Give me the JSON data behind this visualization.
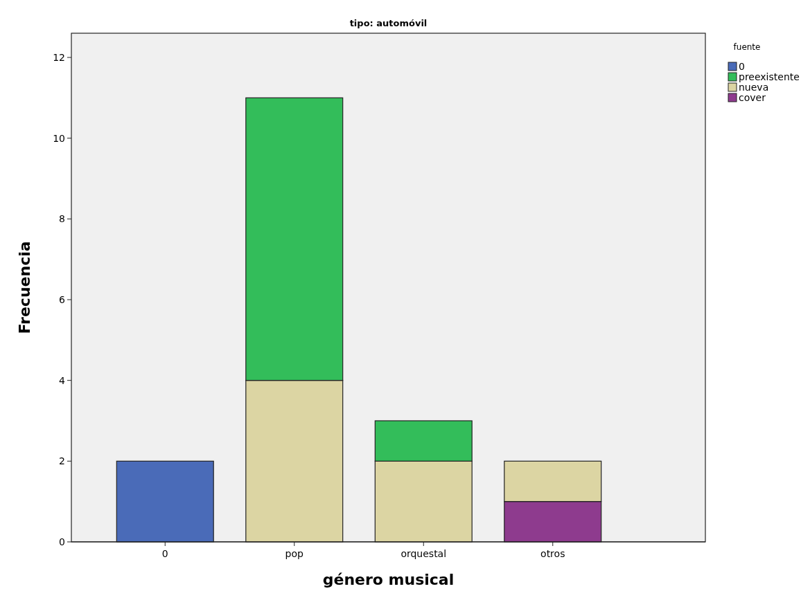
{
  "chart_data": {
    "type": "bar",
    "title": "tipo: automóvil",
    "xlabel": "género musical",
    "ylabel": "Frecuencia",
    "legend_title": "fuente",
    "categories": [
      "0",
      "pop",
      "orquestal",
      "otros"
    ],
    "stacked": true,
    "ylim": [
      0,
      12.6
    ],
    "yticks": [
      0,
      2,
      4,
      6,
      8,
      10,
      12
    ],
    "grid": false,
    "legend": "top right",
    "series": [
      {
        "name": "cover",
        "color": "#8e3b8e",
        "values": [
          null,
          null,
          null,
          1
        ]
      },
      {
        "name": "nueva",
        "color": "#dcd5a3",
        "values": [
          null,
          4,
          2,
          1
        ]
      },
      {
        "name": "preexistente",
        "color": "#33bd5a",
        "values": [
          null,
          7,
          1,
          null
        ]
      },
      {
        "name": "0",
        "color": "#4a6bb8",
        "values": [
          2,
          null,
          null,
          null
        ]
      }
    ]
  }
}
